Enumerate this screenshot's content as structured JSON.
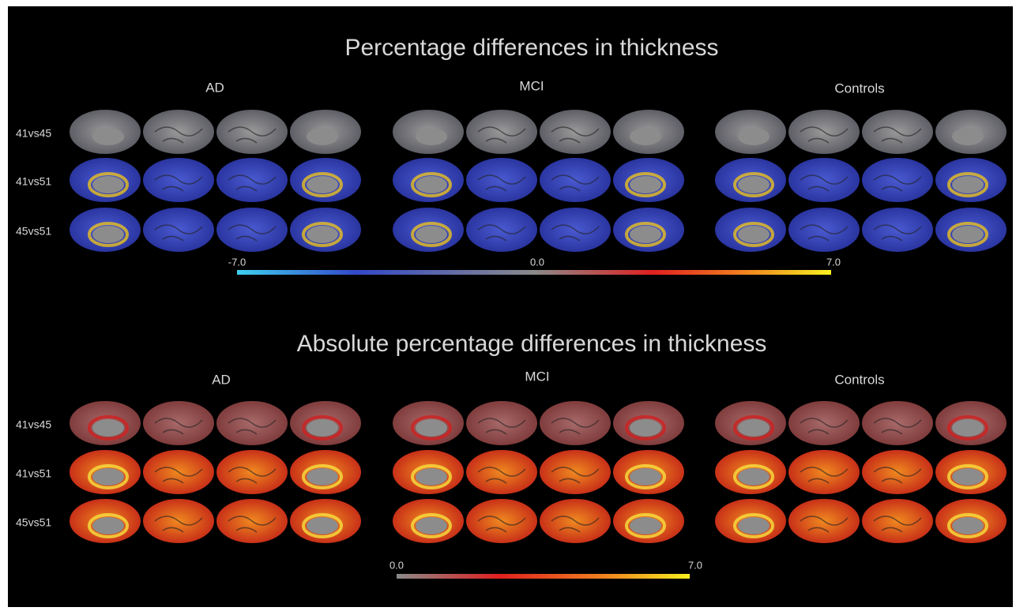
{
  "panels": [
    {
      "title": "Percentage differences in thickness",
      "groups": [
        "AD",
        "MCI",
        "Controls"
      ],
      "rows": [
        "41vs45",
        "41vs51",
        "45vs51"
      ],
      "colorbar": {
        "labels": [
          "-7.0",
          "0.0",
          "7.0"
        ]
      }
    },
    {
      "title": "Absolute percentage differences in thickness",
      "groups": [
        "AD",
        "MCI",
        "Controls"
      ],
      "rows": [
        "41vs45",
        "41vs51",
        "45vs51"
      ],
      "colorbar": {
        "labels": [
          "0.0",
          "7.0"
        ]
      }
    }
  ]
}
